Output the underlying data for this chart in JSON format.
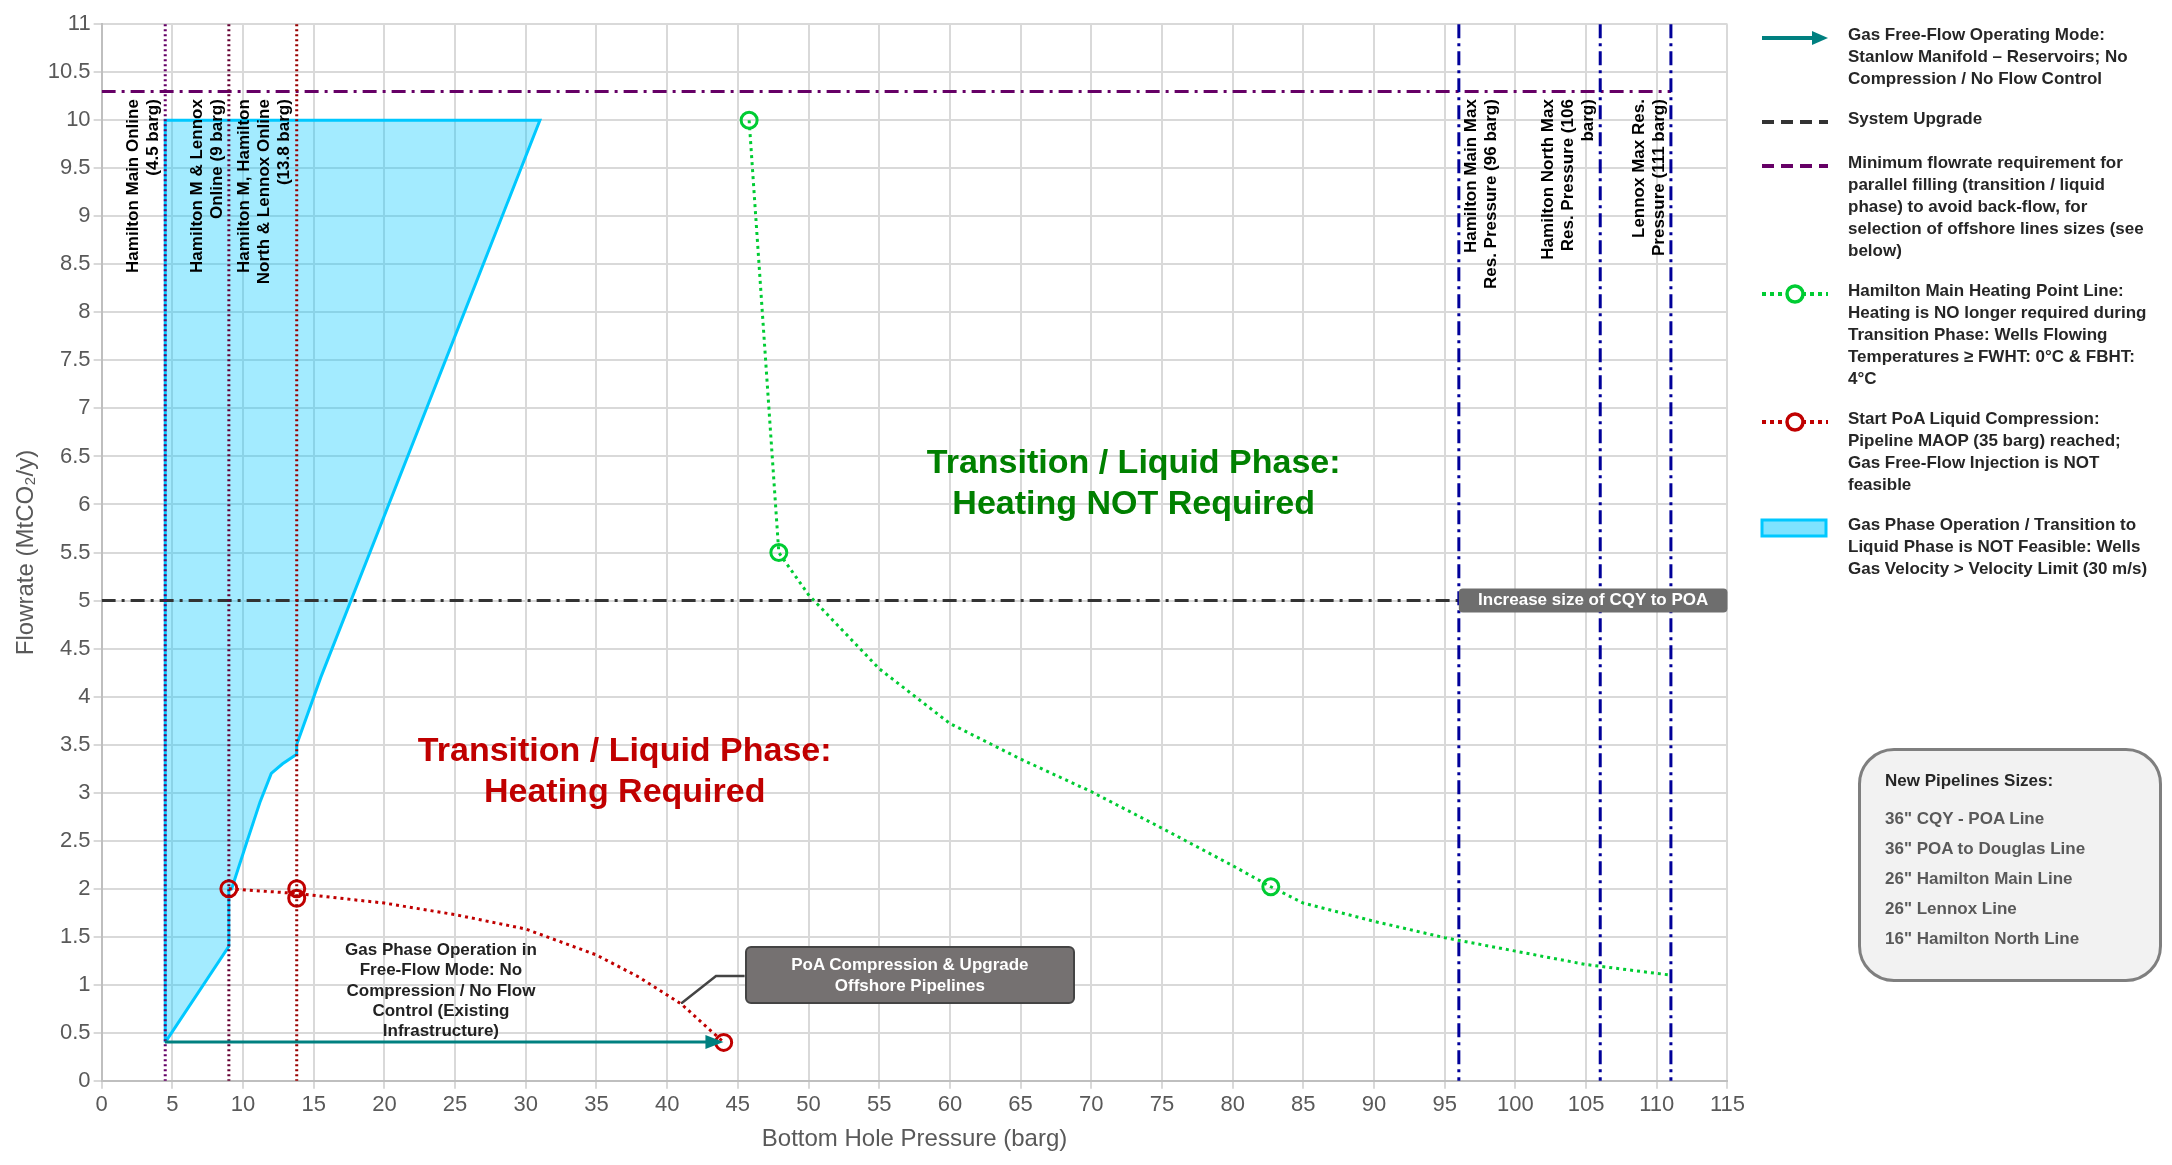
{
  "chart_data": {
    "type": "line",
    "xlabel": "Bottom Hole Pressure (barg)",
    "ylabel": "Flowrate (MtCO₂/y)",
    "xlim": [
      0,
      115
    ],
    "ylim": [
      0,
      11
    ],
    "xticks": [
      0,
      5,
      10,
      15,
      20,
      25,
      30,
      35,
      40,
      45,
      50,
      55,
      60,
      65,
      70,
      75,
      80,
      85,
      90,
      95,
      100,
      105,
      110,
      115
    ],
    "yticks": [
      0,
      0.5,
      1,
      1.5,
      2,
      2.5,
      3,
      3.5,
      4,
      4.5,
      5,
      5.5,
      6,
      6.5,
      7,
      7.5,
      8,
      8.5,
      9,
      9.5,
      10,
      10.5,
      11
    ],
    "grid": true,
    "legend": "right",
    "series": [
      {
        "name": "System Upgrade",
        "color": "#333333",
        "line_style": "dashed",
        "marker": "none",
        "x": [
          0,
          96
        ],
        "values": [
          5,
          5
        ]
      },
      {
        "name": "Minimum flowrate requirement for parallel filling (transition / liquid phase) to avoid back-flow, for selection of offshore lines sizes (see below)",
        "color": "#660066",
        "line_style": "dashed",
        "marker": "none",
        "x": [
          0,
          111
        ],
        "values": [
          10.3,
          10.3
        ]
      },
      {
        "name": "Hamilton Main Heating Point Line: Heating is NO longer required during Transition Phase: Wells Flowing Temperatures ≥  FWHT: 0°C & FBHT: 4°C",
        "type": "scatter",
        "color": "#00cc33",
        "marker": "circle",
        "x": [
          45.8,
          47.9,
          82.7
        ],
        "values": [
          10,
          5.5,
          2.02
        ]
      },
      {
        "name": "Start PoA Liquid Compression: Pipeline MAOP (35 barg) reached; Gas Free-Flow Injection is NOT feasible",
        "type": "scatter",
        "color": "#c00000",
        "marker": "circle",
        "x": [
          9,
          13.8,
          13.8,
          44
        ],
        "values": [
          2.0,
          2.0,
          1.9,
          0.4
        ]
      },
      {
        "name": "Gas Phase Operation / Transition to Liquid Phase is NOT Feasible: Wells Gas Velocity > Velocity Limit (30 m/s)",
        "type": "area",
        "color": "#00c8ff",
        "x": [
          4.5,
          4.5,
          31,
          15.5,
          13.8,
          13.8,
          12.8,
          12.0,
          11.2,
          10.3,
          9.2,
          9.0,
          9.0,
          4.5
        ],
        "values": [
          0.4,
          10,
          10,
          4.2,
          3.5,
          3.4,
          3.3,
          3.2,
          2.9,
          2.5,
          2.0,
          2.0,
          1.4,
          0.4
        ]
      },
      {
        "color": "#00cc33",
        "line_style": "dotted",
        "marker": "none",
        "x": [
          45.8,
          47.9,
          50,
          55,
          60,
          65,
          70,
          75,
          80,
          82.7,
          85,
          90,
          95,
          100,
          105,
          111
        ],
        "values": [
          10,
          5.5,
          5.06,
          4.29,
          3.72,
          3.35,
          3.01,
          2.63,
          2.24,
          2.02,
          1.85,
          1.66,
          1.49,
          1.35,
          1.21,
          1.1
        ]
      },
      {
        "color": "#c00000",
        "line_style": "dotted",
        "marker": "none",
        "x": [
          9,
          13.8,
          20,
          25,
          30,
          35,
          38,
          41,
          44
        ],
        "values": [
          2.0,
          1.95,
          1.85,
          1.73,
          1.58,
          1.31,
          1.08,
          0.8,
          0.4
        ]
      }
    ],
    "ref_lines": [
      {
        "axis": "x",
        "value": 4.5,
        "label": "Hamilton Main Online (4.5 barg)",
        "color": "#660066",
        "line_style": "dotted"
      },
      {
        "axis": "x",
        "value": 9,
        "label": "Hamilton M & Lennox Online (9 barg)",
        "color": "#660033",
        "line_style": "dotted"
      },
      {
        "axis": "x",
        "value": 13.8,
        "label": "Hamilton M, Hamilton North & Lennox Online (13.8 barg)",
        "color": "#990000",
        "line_style": "dotted"
      },
      {
        "axis": "x",
        "value": 96,
        "label": "Hamilton Main Max Res. Pressure (96 barg)",
        "color": "#000099",
        "line_style": "dashed"
      },
      {
        "axis": "x",
        "value": 106,
        "label": "Hamilton North Max Res. Pressure (106 barg)",
        "color": "#000099",
        "line_style": "dashed"
      },
      {
        "axis": "x",
        "value": 111,
        "label": "Lennox Max Res. Pressure (111 barg)",
        "color": "#000099",
        "line_style": "dashed"
      }
    ],
    "annotations": [
      "Transition / Liquid Phase: Heating Required",
      "Transition / Liquid Phase: Heating NOT Required",
      "Gas Phase Operation in Free-Flow Mode: No Compression / No Flow Control (Existing Infrastructure)",
      "PoA Compression & Upgrade Offshore Pipelines",
      {
        "text": "Increase size of CQY to POA",
        "x": 96,
        "y": 5
      },
      "New Pipelines Sizes:",
      "36\" CQY - POA Line",
      "36\" POA to Douglas Line",
      "26\" Hamilton Main Line",
      "26\" Lennox Line",
      "16\" Hamilton North Line",
      "Gas Free-Flow Operating Mode: Stanlow Manifold – Reservoirs; No Compression / No Flow Control"
    ]
  }
}
